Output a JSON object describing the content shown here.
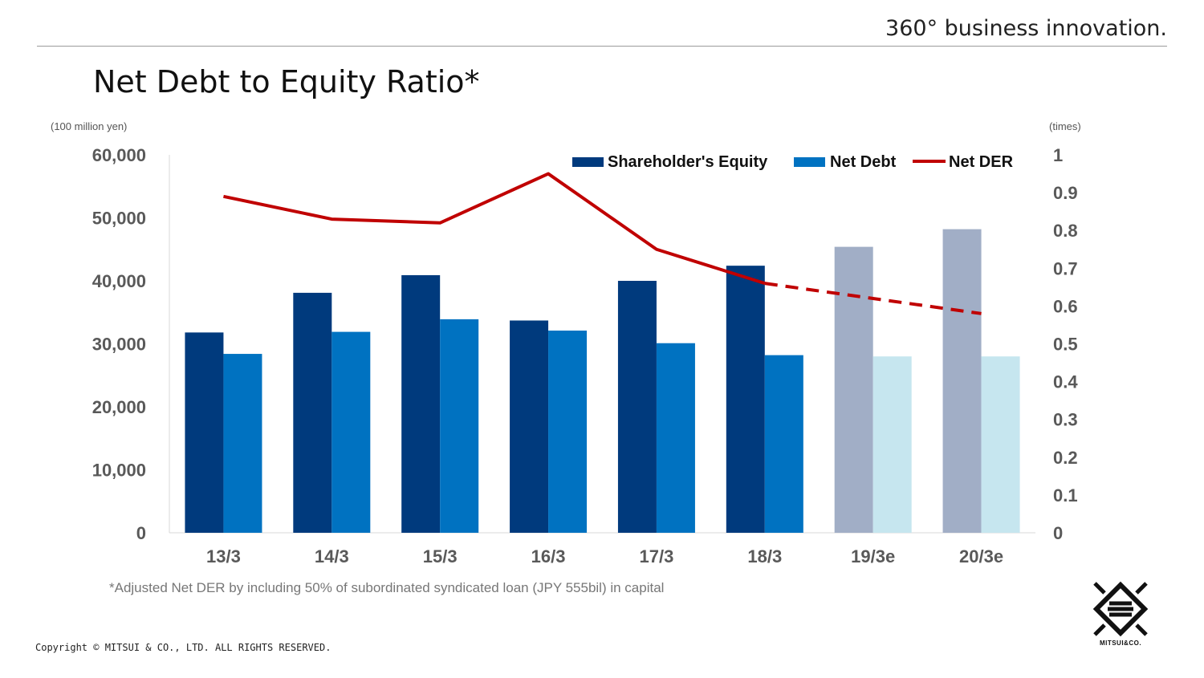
{
  "header": {
    "tagline": "360° business innovation.",
    "title": "Net Debt to Equity Ratio*"
  },
  "axis_units": {
    "left": "(100 million yen)",
    "right": "(times)"
  },
  "footnote": "*Adjusted Net DER by including 50% of subordinated syndicated loan (JPY 555bil) in capital",
  "copyright": "Copyright © MITSUI & CO., LTD. ALL RIGHTS RESERVED.",
  "logo": {
    "text": "MITSUI&CO."
  },
  "colors": {
    "equity": "#003a7d",
    "equity_est": "#a1aec6",
    "debt": "#0072c1",
    "debt_est": "#c6e6ef",
    "der": "#c00000",
    "axis": "#d9d9d9"
  },
  "chart_data": {
    "type": "bar",
    "categories": [
      "13/3",
      "14/3",
      "15/3",
      "16/3",
      "17/3",
      "18/3",
      "19/3e",
      "20/3e"
    ],
    "estimated_from_index": 6,
    "series": [
      {
        "name": "Shareholder's Equity",
        "kind": "bar",
        "axis": "left",
        "values": [
          31800,
          38100,
          40900,
          33700,
          40000,
          42400,
          45400,
          48200
        ]
      },
      {
        "name": "Net Debt",
        "kind": "bar",
        "axis": "left",
        "values": [
          28400,
          31900,
          33900,
          32100,
          30100,
          28200,
          28000,
          28000
        ]
      },
      {
        "name": "Net DER",
        "kind": "line",
        "axis": "right",
        "values": [
          0.89,
          0.83,
          0.82,
          0.95,
          0.75,
          0.66,
          0.62,
          0.58
        ],
        "dashed_from_index": 5
      }
    ],
    "y_left": {
      "min": 0,
      "max": 60000,
      "ticks": [
        "0",
        "10,000",
        "20,000",
        "30,000",
        "40,000",
        "50,000",
        "60,000"
      ]
    },
    "y_right": {
      "min": 0,
      "max": 1,
      "ticks": [
        "0",
        "0.1",
        "0.2",
        "0.3",
        "0.4",
        "0.5",
        "0.6",
        "0.7",
        "0.8",
        "0.9",
        "1"
      ]
    },
    "legend": [
      "Shareholder's Equity",
      "Net Debt",
      "Net DER"
    ],
    "legend_position": "top-right"
  }
}
